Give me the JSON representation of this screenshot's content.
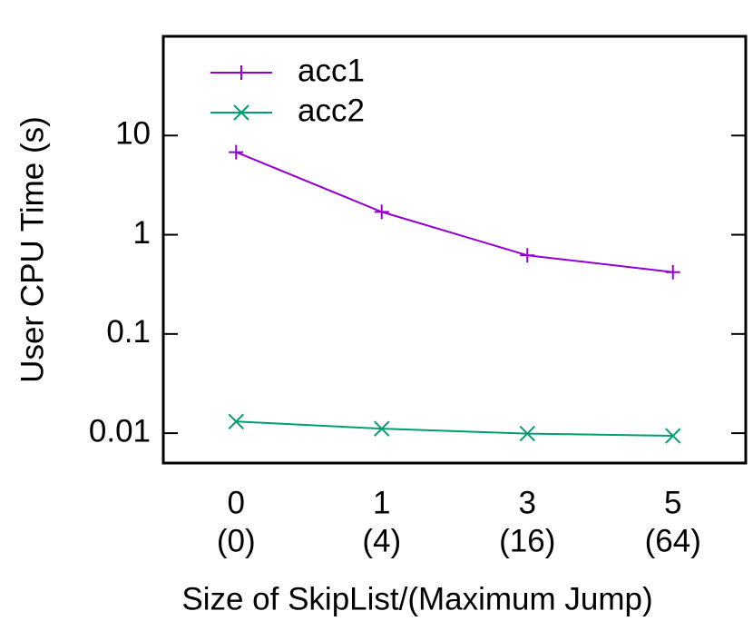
{
  "chart_data": {
    "type": "line",
    "x_label": "Size of SkipList/(Maximum Jump)",
    "y_label": "User CPU Time (s)",
    "categories": [
      "0",
      "1",
      "3",
      "5"
    ],
    "category_sublabels": [
      "(0)",
      "(4)",
      "(16)",
      "(64)"
    ],
    "series": [
      {
        "name": "acc1",
        "color": "#9400d3",
        "marker": "plus",
        "values": [
          6.8,
          1.7,
          0.62,
          0.42
        ]
      },
      {
        "name": "acc2",
        "color": "#009e73",
        "marker": "cross",
        "values": [
          0.0131,
          0.0111,
          0.0099,
          0.0094
        ]
      }
    ],
    "ylim": [
      0.005,
      100
    ],
    "yticks": [
      0.01,
      0.1,
      1,
      10
    ],
    "log_y": true,
    "legend": "top-left"
  }
}
